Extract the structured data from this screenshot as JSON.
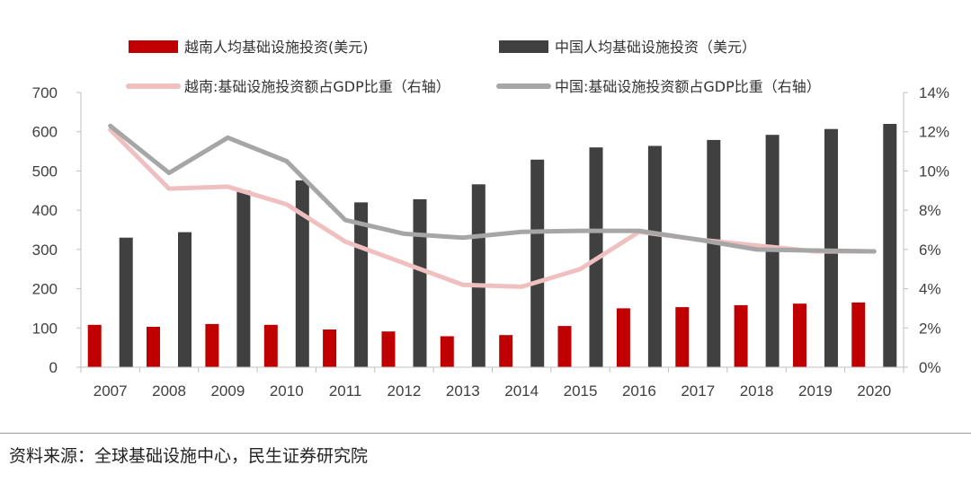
{
  "chart_data": {
    "type": "bar",
    "categories": [
      "2007",
      "2008",
      "2009",
      "2010",
      "2011",
      "2012",
      "2013",
      "2014",
      "2015",
      "2016",
      "2017",
      "2018",
      "2019",
      "2020"
    ],
    "series": [
      {
        "name": "越南人均基础设施投资(美元)",
        "kind": "bar",
        "axis": "left",
        "color": "#c00000",
        "values": [
          108,
          103,
          110,
          108,
          96,
          91,
          79,
          82,
          105,
          150,
          153,
          158,
          162,
          165
        ]
      },
      {
        "name": "中国人均基础设施投资（美元）",
        "kind": "bar",
        "axis": "left",
        "color": "#404040",
        "values": [
          330,
          344,
          450,
          476,
          420,
          428,
          466,
          529,
          560,
          564,
          579,
          592,
          607,
          620
        ]
      },
      {
        "name": "越南:基础设施投资额占GDP比重（右轴）",
        "kind": "line",
        "axis": "right",
        "color": "#f0c0c0",
        "values": [
          12.1,
          9.1,
          9.2,
          8.3,
          6.4,
          5.3,
          4.2,
          4.1,
          5.0,
          6.9,
          6.5,
          6.2,
          5.9,
          5.9
        ]
      },
      {
        "name": "中国:基础设施投资额占GDP比重（右轴）",
        "kind": "line",
        "axis": "right",
        "color": "#a6a6a6",
        "values": [
          12.3,
          9.9,
          11.7,
          10.5,
          7.5,
          6.8,
          6.6,
          6.9,
          6.95,
          6.95,
          6.5,
          6.0,
          5.95,
          5.9
        ]
      }
    ],
    "y_left": {
      "ylim": [
        0,
        700
      ],
      "ticks": [
        "0",
        "100",
        "200",
        "300",
        "400",
        "500",
        "600",
        "700"
      ]
    },
    "y_right": {
      "ylim": [
        0,
        14
      ],
      "ticks": [
        "0%",
        "2%",
        "4%",
        "6%",
        "8%",
        "10%",
        "12%",
        "14%"
      ]
    },
    "legend_position": "top",
    "grid": false
  },
  "source_text": "资料来源：全球基础设施中心，民生证券研究院"
}
